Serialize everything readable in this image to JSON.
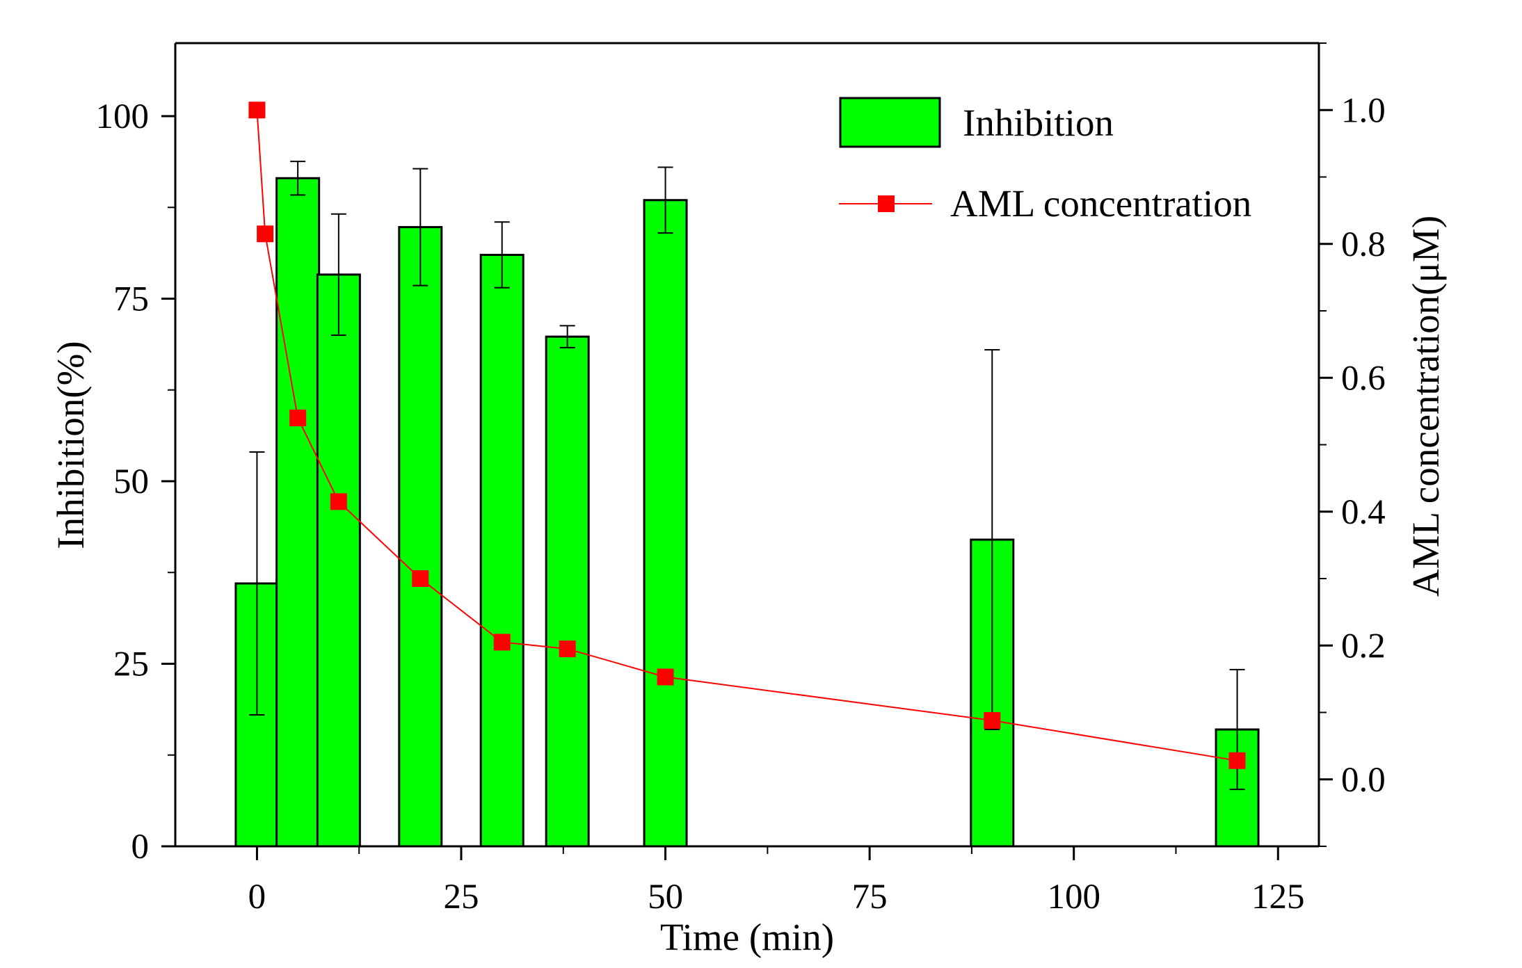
{
  "chart_data": {
    "type": "bar",
    "xlabel": "Time (min)",
    "ylabel_left": "Inhibition(%)",
    "ylabel_right": "AML concentration(μM)",
    "x_ticks": [
      "0",
      "25",
      "50",
      "75",
      "100",
      "125"
    ],
    "y_left_ticks": [
      "0",
      "25",
      "50",
      "75",
      "100"
    ],
    "y_right_ticks": [
      "0.0",
      "0.2",
      "0.4",
      "0.6",
      "0.8",
      "1.0"
    ],
    "xlim": [
      -10,
      130
    ],
    "ylim_left": [
      0,
      110
    ],
    "ylim_right": [
      -0.1,
      1.1
    ],
    "grid": false,
    "legend_position": "top-right",
    "colors": {
      "bar": "#00ff00",
      "line": "#ff0000"
    },
    "series": [
      {
        "name": "Inhibition",
        "type": "bar",
        "axis": "left",
        "x": [
          0,
          5,
          10,
          20,
          30,
          38,
          50,
          90,
          120
        ],
        "values": [
          36,
          91.5,
          78.3,
          84.8,
          81,
          69.8,
          88.5,
          42,
          16
        ],
        "error": [
          18,
          2.3,
          8.3,
          8,
          4.5,
          1.5,
          4.5,
          26,
          8.2
        ]
      },
      {
        "name": "AML concentration",
        "type": "line",
        "axis": "right",
        "marker": "square",
        "x": [
          0,
          1,
          5,
          10,
          20,
          30,
          38,
          50,
          90,
          120
        ],
        "values": [
          1.0,
          0.815,
          0.54,
          0.415,
          0.3,
          0.205,
          0.195,
          0.153,
          0.088,
          0.028
        ]
      }
    ]
  }
}
